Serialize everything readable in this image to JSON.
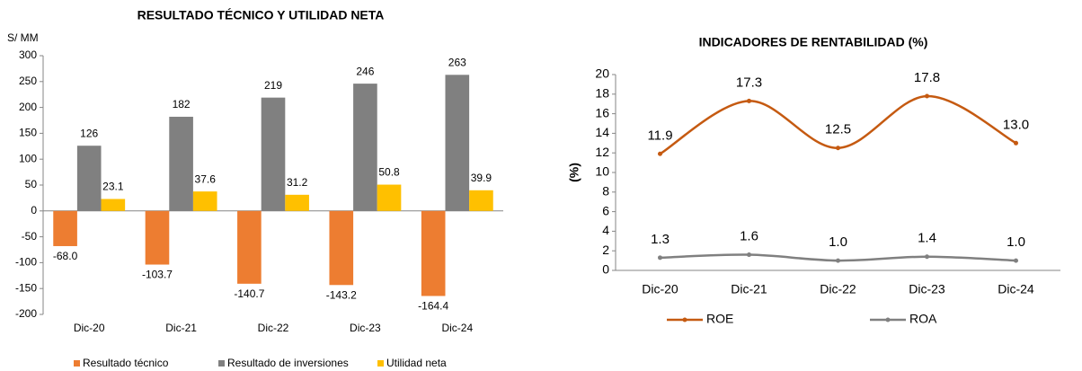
{
  "chart_data": [
    {
      "type": "bar",
      "title": "RESULTADO TÉCNICO Y UTILIDAD NETA",
      "y_label": "S/ MM",
      "categories": [
        "Dic-20",
        "Dic-21",
        "Dic-22",
        "Dic-23",
        "Dic-24"
      ],
      "series": [
        {
          "name": "Resultado técnico",
          "color": "#ED7D31",
          "values": [
            -68.0,
            -103.7,
            -140.7,
            -143.2,
            -164.4
          ],
          "value_labels": [
            "-68.0",
            "-103.7",
            "-140.7",
            "-143.2",
            "-164.4"
          ]
        },
        {
          "name": "Resultado de inversiones",
          "color": "#808080",
          "values": [
            126,
            182,
            219,
            246,
            263
          ]
        },
        {
          "name": "Utilidad neta",
          "color": "#FFC000",
          "values": [
            23.1,
            37.6,
            31.2,
            50.8,
            39.9
          ]
        }
      ],
      "ylim": [
        -200,
        300
      ],
      "yticks": [
        -200,
        -150,
        -100,
        -50,
        0,
        50,
        100,
        150,
        200,
        250,
        300
      ],
      "legend": "bottom"
    },
    {
      "type": "line",
      "title": "INDICADORES DE RENTABILIDAD (%)",
      "y_label": "(%)",
      "categories": [
        "Dic-20",
        "Dic-21",
        "Dic-22",
        "Dic-23",
        "Dic-24"
      ],
      "series": [
        {
          "name": "ROE",
          "color": "#C55A11",
          "values": [
            11.9,
            17.3,
            12.5,
            17.8,
            13.0
          ],
          "value_labels": [
            "11.9",
            "17.3",
            "12.5",
            "17.8",
            "13.0"
          ]
        },
        {
          "name": "ROA",
          "color": "#808080",
          "values": [
            1.3,
            1.6,
            1.0,
            1.4,
            1.0
          ],
          "value_labels": [
            "1.3",
            "1.6",
            "1.0",
            "1.4",
            "1.0"
          ]
        }
      ],
      "ylim": [
        0,
        20
      ],
      "yticks": [
        0,
        2,
        4,
        6,
        8,
        10,
        12,
        14,
        16,
        18,
        20
      ],
      "legend": "bottom"
    }
  ]
}
